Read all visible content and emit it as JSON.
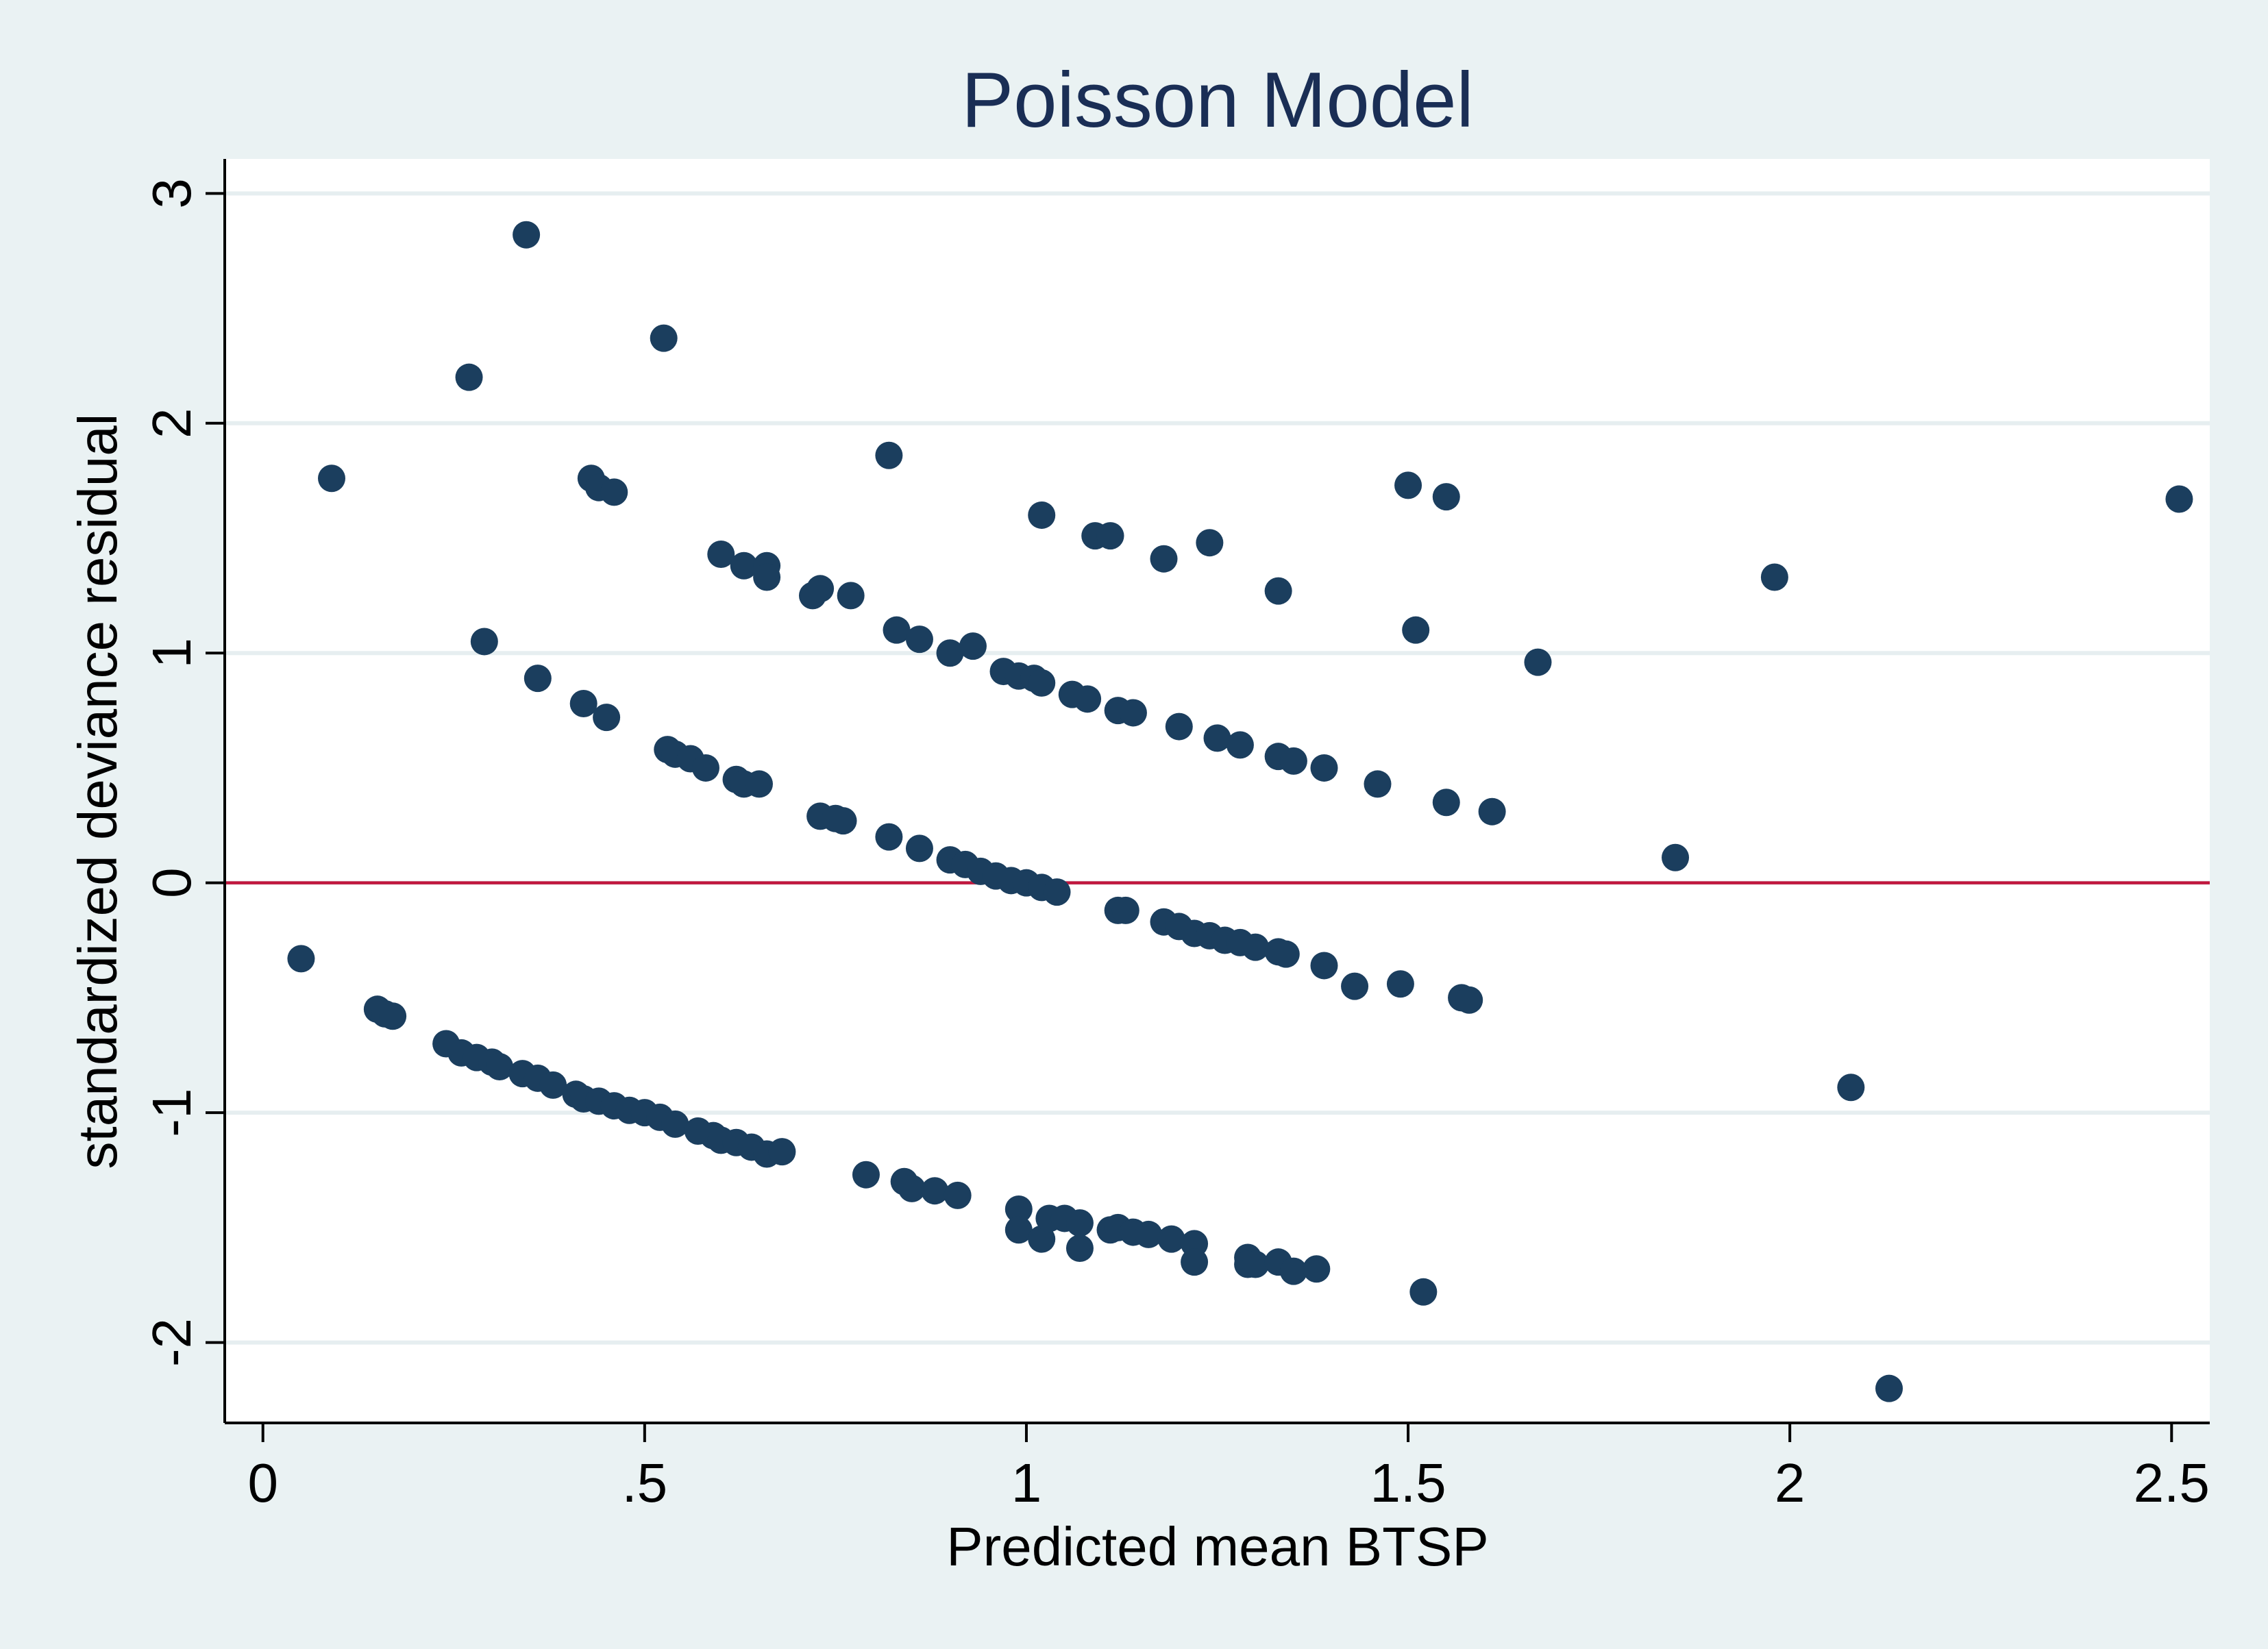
{
  "chart_data": {
    "type": "scatter",
    "title": "Poisson Model",
    "xlabel": "Predicted mean BTSP",
    "ylabel": "standardized deviance residual",
    "xlim": [
      -0.05,
      2.55
    ],
    "ylim": [
      -2.35,
      3.15
    ],
    "xticks": [
      0,
      0.5,
      1,
      1.5,
      2,
      2.5
    ],
    "xtick_labels": [
      "0",
      ".5",
      "1",
      "1.5",
      "2",
      "2.5"
    ],
    "yticks": [
      -2,
      -1,
      0,
      1,
      2,
      3
    ],
    "ytick_labels": [
      "-2",
      "-1",
      "0",
      "1",
      "2",
      "3"
    ],
    "grid": true,
    "reference_line": {
      "y": 0,
      "color": "#c0173e"
    },
    "marker_color": "#1b3e5e",
    "points": [
      [
        0.05,
        -0.33
      ],
      [
        0.09,
        1.76
      ],
      [
        0.15,
        -0.55
      ],
      [
        0.16,
        -0.57
      ],
      [
        0.17,
        -0.58
      ],
      [
        0.24,
        -0.7
      ],
      [
        0.26,
        -0.74
      ],
      [
        0.27,
        2.2
      ],
      [
        0.28,
        -0.76
      ],
      [
        0.29,
        1.05
      ],
      [
        0.3,
        -0.78
      ],
      [
        0.31,
        -0.8
      ],
      [
        0.34,
        -0.83
      ],
      [
        0.345,
        2.82
      ],
      [
        0.36,
        -0.85
      ],
      [
        0.36,
        0.89
      ],
      [
        0.38,
        -0.88
      ],
      [
        0.41,
        -0.92
      ],
      [
        0.42,
        0.78
      ],
      [
        0.42,
        -0.94
      ],
      [
        0.43,
        1.76
      ],
      [
        0.44,
        1.72
      ],
      [
        0.44,
        -0.95
      ],
      [
        0.45,
        0.72
      ],
      [
        0.46,
        1.7
      ],
      [
        0.46,
        -0.97
      ],
      [
        0.48,
        -0.99
      ],
      [
        0.5,
        -1.0
      ],
      [
        0.52,
        -1.02
      ],
      [
        0.525,
        2.37
      ],
      [
        0.53,
        0.58
      ],
      [
        0.54,
        0.56
      ],
      [
        0.54,
        -1.05
      ],
      [
        0.56,
        0.54
      ],
      [
        0.57,
        -1.08
      ],
      [
        0.58,
        0.5
      ],
      [
        0.59,
        -1.1
      ],
      [
        0.6,
        1.43
      ],
      [
        0.6,
        -1.12
      ],
      [
        0.62,
        0.45
      ],
      [
        0.62,
        -1.13
      ],
      [
        0.63,
        1.38
      ],
      [
        0.63,
        0.43
      ],
      [
        0.64,
        -1.15
      ],
      [
        0.65,
        0.43
      ],
      [
        0.66,
        1.38
      ],
      [
        0.66,
        1.33
      ],
      [
        0.66,
        -1.18
      ],
      [
        0.68,
        -1.17
      ],
      [
        0.72,
        1.25
      ],
      [
        0.73,
        1.28
      ],
      [
        0.73,
        0.29
      ],
      [
        0.75,
        0.28
      ],
      [
        0.76,
        0.27
      ],
      [
        0.77,
        1.25
      ],
      [
        0.79,
        -1.27
      ],
      [
        0.82,
        0.2
      ],
      [
        0.82,
        1.86
      ],
      [
        0.83,
        1.1
      ],
      [
        0.84,
        -1.3
      ],
      [
        0.85,
        -1.33
      ],
      [
        0.86,
        1.06
      ],
      [
        0.86,
        0.15
      ],
      [
        0.88,
        -1.34
      ],
      [
        0.9,
        1.0
      ],
      [
        0.9,
        0.1
      ],
      [
        0.91,
        -1.36
      ],
      [
        0.92,
        0.08
      ],
      [
        0.93,
        1.03
      ],
      [
        0.94,
        0.05
      ],
      [
        0.96,
        0.03
      ],
      [
        0.97,
        0.92
      ],
      [
        0.98,
        0.01
      ],
      [
        0.99,
        0.9
      ],
      [
        0.99,
        -1.42
      ],
      [
        0.99,
        -1.51
      ],
      [
        1.0,
        0.0
      ],
      [
        1.01,
        0.89
      ],
      [
        1.02,
        -0.02
      ],
      [
        1.02,
        1.6
      ],
      [
        1.02,
        0.87
      ],
      [
        1.02,
        -1.55
      ],
      [
        1.03,
        -1.46
      ],
      [
        1.04,
        -0.04
      ],
      [
        1.05,
        -1.46
      ],
      [
        1.06,
        0.82
      ],
      [
        1.07,
        -1.48
      ],
      [
        1.07,
        -1.59
      ],
      [
        1.08,
        0.8
      ],
      [
        1.09,
        1.51
      ],
      [
        1.11,
        1.51
      ],
      [
        1.11,
        -1.51
      ],
      [
        1.12,
        -1.5
      ],
      [
        1.12,
        0.75
      ],
      [
        1.12,
        -0.12
      ],
      [
        1.13,
        -0.12
      ],
      [
        1.14,
        0.74
      ],
      [
        1.14,
        -1.52
      ],
      [
        1.16,
        -1.53
      ],
      [
        1.18,
        -0.17
      ],
      [
        1.18,
        1.41
      ],
      [
        1.19,
        -1.55
      ],
      [
        1.2,
        0.68
      ],
      [
        1.2,
        -0.19
      ],
      [
        1.22,
        -1.57
      ],
      [
        1.22,
        -0.22
      ],
      [
        1.22,
        -1.65
      ],
      [
        1.24,
        1.48
      ],
      [
        1.24,
        -0.23
      ],
      [
        1.25,
        0.63
      ],
      [
        1.26,
        -0.25
      ],
      [
        1.28,
        0.6
      ],
      [
        1.28,
        -0.26
      ],
      [
        1.29,
        -1.63
      ],
      [
        1.29,
        -1.66
      ],
      [
        1.3,
        -0.28
      ],
      [
        1.3,
        -1.66
      ],
      [
        1.33,
        1.27
      ],
      [
        1.33,
        0.55
      ],
      [
        1.33,
        -0.3
      ],
      [
        1.33,
        -1.65
      ],
      [
        1.34,
        -0.31
      ],
      [
        1.35,
        0.53
      ],
      [
        1.35,
        -1.69
      ],
      [
        1.38,
        -1.68
      ],
      [
        1.39,
        0.5
      ],
      [
        1.39,
        -0.36
      ],
      [
        1.43,
        -0.45
      ],
      [
        1.46,
        0.43
      ],
      [
        1.49,
        -0.44
      ],
      [
        1.5,
        1.73
      ],
      [
        1.51,
        1.1
      ],
      [
        1.52,
        -1.78
      ],
      [
        1.55,
        1.68
      ],
      [
        1.55,
        0.35
      ],
      [
        1.57,
        -0.5
      ],
      [
        1.58,
        -0.51
      ],
      [
        1.61,
        0.31
      ],
      [
        1.67,
        0.96
      ],
      [
        1.85,
        0.11
      ],
      [
        1.98,
        1.33
      ],
      [
        2.08,
        -0.89
      ],
      [
        2.13,
        -2.2
      ],
      [
        2.51,
        1.67
      ]
    ]
  }
}
